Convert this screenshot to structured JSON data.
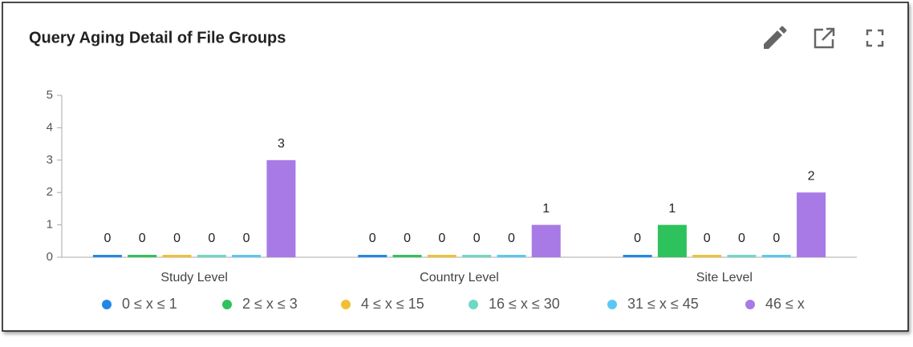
{
  "chart_data": {
    "type": "bar",
    "title": "Query Aging Detail of File Groups",
    "categories": [
      "Study Level",
      "Country Level",
      "Site Level"
    ],
    "series": [
      {
        "name": "0 ≤ x ≤ 1",
        "color": "#2187e6",
        "values": [
          0,
          0,
          0
        ]
      },
      {
        "name": "2 ≤ x ≤ 3",
        "color": "#2ec25c",
        "values": [
          0,
          0,
          1
        ]
      },
      {
        "name": "4 ≤ x ≤ 15",
        "color": "#f2bf34",
        "values": [
          0,
          0,
          0
        ]
      },
      {
        "name": "16 ≤ x ≤ 30",
        "color": "#6ed8c2",
        "values": [
          0,
          0,
          0
        ]
      },
      {
        "name": "31 ≤ x ≤ 45",
        "color": "#5ac8f4",
        "values": [
          0,
          0,
          0
        ]
      },
      {
        "name": "46 ≤ x",
        "color": "#a77ae6",
        "values": [
          3,
          1,
          2
        ]
      }
    ],
    "ylim": [
      0,
      5
    ],
    "yticks": [
      0,
      1,
      2,
      3,
      4,
      5
    ],
    "legend": "bottom"
  }
}
